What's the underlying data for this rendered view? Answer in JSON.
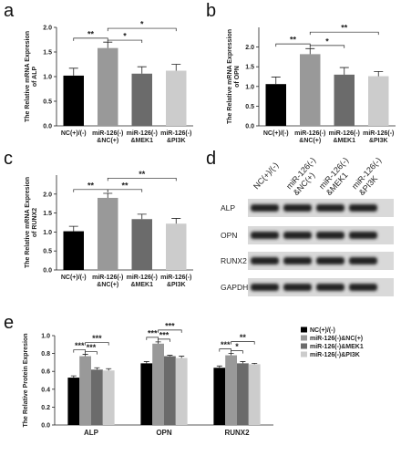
{
  "chart_data": [
    {
      "type": "bar",
      "label": "a",
      "ylabel": "The Relative mRNA Expresion\nof ALP",
      "categories": [
        "NC(+)/(-)",
        "miR-126(-)\n&NC(+)",
        "miR-126(-)\n&MEK1",
        "miR-126(-)\n&PI3K"
      ],
      "values": [
        1.02,
        1.58,
        1.06,
        1.12
      ],
      "errors": [
        0.15,
        0.12,
        0.14,
        0.13
      ],
      "colors": [
        "#000000",
        "#999999",
        "#6b6b6b",
        "#cccccc"
      ],
      "ylim": [
        0,
        2
      ],
      "yticks": [
        {
          "value": 0,
          "label": "0.0"
        },
        0.5,
        {
          "value": 1,
          "label": "1.0"
        },
        1.5,
        {
          "value": 2,
          "label": "2.0"
        }
      ],
      "annotations": [
        "**",
        "*",
        "*"
      ]
    },
    {
      "type": "bar",
      "label": "b",
      "ylabel": "The Relative mRNA Expression\nof OPN",
      "categories": [
        "NC(+)/(-)",
        "miR-126(-)\n&NC(+)",
        "miR-126(-)\n&MEK1",
        "miR-126(-)\n&PI3K"
      ],
      "values": [
        1.06,
        1.82,
        1.3,
        1.26
      ],
      "errors": [
        0.18,
        0.14,
        0.18,
        0.12
      ],
      "colors": [
        "#000000",
        "#999999",
        "#6b6b6b",
        "#cccccc"
      ],
      "ylim": [
        0,
        2.5
      ],
      "yticks": [
        {
          "value": 0,
          "label": "0.0"
        },
        0.5,
        {
          "value": 1,
          "label": "1.0"
        },
        1.5,
        {
          "value": 2,
          "label": "2.0"
        }
      ],
      "annotations": [
        "**",
        "*",
        "**"
      ]
    },
    {
      "type": "bar",
      "label": "c",
      "ylabel": "The Relative mRNA Expresion\nof RUNX2",
      "categories": [
        "NC(+)/(-)",
        "miR-126(-)\n&NC(+)",
        "miR-126(-)\n&MEK1",
        "miR-126(-)\n&PI3K"
      ],
      "values": [
        1.02,
        1.9,
        1.34,
        1.22
      ],
      "errors": [
        0.13,
        0.12,
        0.13,
        0.14
      ],
      "colors": [
        "#000000",
        "#999999",
        "#6b6b6b",
        "#cccccc"
      ],
      "ylim": [
        0,
        2.5
      ],
      "yticks": [
        {
          "value": 0,
          "label": "0.0"
        },
        0.5,
        {
          "value": 1,
          "label": "1.0"
        },
        1.5,
        {
          "value": 2,
          "label": "2.0"
        }
      ],
      "annotations": [
        "**",
        "**",
        "**"
      ]
    },
    {
      "type": "grouped_bar",
      "label": "e",
      "ylabel": "The Relative Protein Expresion",
      "categories": [
        "ALP",
        "OPN",
        "RUNX2"
      ],
      "series": [
        {
          "name": "NC(+)/(-)",
          "color": "#000000",
          "values": [
            0.53,
            0.69,
            0.64
          ],
          "errors": [
            0.02,
            0.02,
            0.02
          ]
        },
        {
          "name": "miR-126(-)&NC(+)",
          "color": "#999999",
          "values": [
            0.77,
            0.91,
            0.78
          ],
          "errors": [
            0.02,
            0.02,
            0.02
          ]
        },
        {
          "name": "miR-126(-)&MEK1",
          "color": "#6b6b6b",
          "values": [
            0.62,
            0.77,
            0.69
          ],
          "errors": [
            0.02,
            0.01,
            0.02
          ]
        },
        {
          "name": "miR-126(-)&PI3K",
          "color": "#cccccc",
          "values": [
            0.61,
            0.75,
            0.68
          ],
          "errors": [
            0.02,
            0.02,
            0.01
          ]
        }
      ],
      "ylim": [
        0,
        1
      ],
      "yticks": [
        {
          "value": 0,
          "label": "0.0"
        },
        0.2,
        0.4,
        0.6,
        0.8,
        {
          "value": 1,
          "label": "1.0"
        }
      ],
      "annotations": [
        [
          "***",
          "***",
          "***"
        ],
        [
          "***",
          "***",
          "***"
        ],
        [
          "***",
          "*",
          "**"
        ]
      ]
    }
  ],
  "blot": {
    "label": "d",
    "lanes": [
      "NC(+)/(-)",
      "miR-126(-)\n&NC(+)",
      "miR-126(-)\n&MEK1",
      "miR-126(-)\n&PI3K"
    ],
    "rows": [
      "ALP",
      "OPN",
      "RUNX2",
      "GAPDH"
    ]
  }
}
